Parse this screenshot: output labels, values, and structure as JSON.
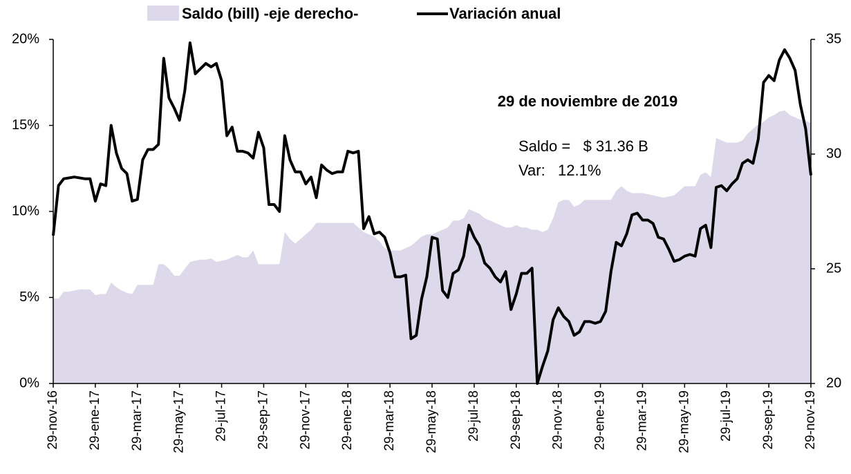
{
  "chart_data": {
    "type": "line",
    "legend": "top",
    "annotations": [
      "29 de noviembre de 2019",
      "Saldo =   $ 31.36 B",
      "Var:   12.1%"
    ],
    "categories": [
      "29-nov-16",
      null,
      null,
      null,
      null,
      null,
      null,
      null,
      "29-ene-17",
      null,
      null,
      null,
      null,
      null,
      null,
      null,
      "29-mar-17",
      null,
      null,
      null,
      null,
      null,
      null,
      null,
      "29-may-17",
      null,
      null,
      null,
      null,
      null,
      null,
      null,
      "29-jul-17",
      null,
      null,
      null,
      null,
      null,
      null,
      null,
      "29-sep-17",
      null,
      null,
      null,
      null,
      null,
      null,
      null,
      "29-nov-17",
      null,
      null,
      null,
      null,
      null,
      null,
      null,
      "29-ene-18",
      null,
      null,
      null,
      null,
      null,
      null,
      null,
      "29-mar-18",
      null,
      null,
      null,
      null,
      null,
      null,
      null,
      "29-may-18",
      null,
      null,
      null,
      null,
      null,
      null,
      null,
      "29-jul-18",
      null,
      null,
      null,
      null,
      null,
      null,
      null,
      "29-sep-18",
      null,
      null,
      null,
      null,
      null,
      null,
      null,
      "29-nov-18",
      null,
      null,
      null,
      null,
      null,
      null,
      null,
      "29-ene-19",
      null,
      null,
      null,
      null,
      null,
      null,
      null,
      "29-mar-19",
      null,
      null,
      null,
      null,
      null,
      null,
      null,
      "29-may-19",
      null,
      null,
      null,
      null,
      null,
      null,
      null,
      "29-jul-19",
      null,
      null,
      null,
      null,
      null,
      null,
      null,
      "29-sep-19",
      null,
      null,
      null,
      null,
      null,
      null,
      null,
      "29-nov-19"
    ],
    "series": [
      {
        "name": "Saldo (bill) -eje derecho-",
        "type": "area",
        "axis": "y2",
        "color": "#ddd8ea",
        "values": [
          23.7,
          23.7,
          24.0,
          24.0,
          24.05,
          24.1,
          24.1,
          24.1,
          23.85,
          23.9,
          23.9,
          24.4,
          24.2,
          24.05,
          23.95,
          23.9,
          24.3,
          24.3,
          24.3,
          24.3,
          25.2,
          25.2,
          25.0,
          24.7,
          24.7,
          25.0,
          25.3,
          25.35,
          25.4,
          25.4,
          25.45,
          25.3,
          25.35,
          25.4,
          25.5,
          25.6,
          25.5,
          25.5,
          25.8,
          25.2,
          25.2,
          25.2,
          25.2,
          25.2,
          26.6,
          26.3,
          26.1,
          26.3,
          26.5,
          26.7,
          27.0,
          27.0,
          27.0,
          27.0,
          27.0,
          27.0,
          27.0,
          27.0,
          26.8,
          26.6,
          26.5,
          26.4,
          26.2,
          25.9,
          25.8,
          25.8,
          25.8,
          25.9,
          26.0,
          26.2,
          26.4,
          26.5,
          26.5,
          26.6,
          26.7,
          26.8,
          27.1,
          27.1,
          27.2,
          27.6,
          27.5,
          27.4,
          27.2,
          27.1,
          27.0,
          26.9,
          26.8,
          26.8,
          26.9,
          26.8,
          26.8,
          26.7,
          26.7,
          26.6,
          26.7,
          27.2,
          27.9,
          28.0,
          28.0,
          27.7,
          27.8,
          28.0,
          28.0,
          28.0,
          28.0,
          28.0,
          28.0,
          28.4,
          28.6,
          28.4,
          28.3,
          28.3,
          28.3,
          28.25,
          28.2,
          28.15,
          28.1,
          28.15,
          28.2,
          28.4,
          28.6,
          28.6,
          28.6,
          29.1,
          29.2,
          29.0,
          30.7,
          30.6,
          30.5,
          30.5,
          30.5,
          30.6,
          30.9,
          31.1,
          31.3,
          31.4,
          31.6,
          31.7,
          31.85,
          31.9,
          31.7,
          31.6,
          31.5,
          31.45,
          31.36
        ]
      },
      {
        "name": "Variación anual",
        "type": "line",
        "color": "#000000",
        "values": [
          8.6,
          11.5,
          11.9,
          11.95,
          12.0,
          11.95,
          11.9,
          11.9,
          10.6,
          11.6,
          11.5,
          15.0,
          13.4,
          12.5,
          12.2,
          10.6,
          10.7,
          13.0,
          13.6,
          13.6,
          13.9,
          18.9,
          16.6,
          16.0,
          15.3,
          17.0,
          19.8,
          18.0,
          18.3,
          18.6,
          18.4,
          18.6,
          17.6,
          14.4,
          14.9,
          13.5,
          13.5,
          13.4,
          13.1,
          14.6,
          13.7,
          10.4,
          10.4,
          10.0,
          14.4,
          13.0,
          12.3,
          12.3,
          11.6,
          12.0,
          10.8,
          12.7,
          12.4,
          12.2,
          12.3,
          12.3,
          13.5,
          13.4,
          13.5,
          9.0,
          9.7,
          8.7,
          8.8,
          8.5,
          7.6,
          6.2,
          6.2,
          6.3,
          2.6,
          2.8,
          4.9,
          6.2,
          8.5,
          8.4,
          5.4,
          5.0,
          6.4,
          6.6,
          7.4,
          9.2,
          8.5,
          8.0,
          7.0,
          6.7,
          6.2,
          5.9,
          6.5,
          4.3,
          5.2,
          6.4,
          6.4,
          6.7,
          0.0,
          1.0,
          1.9,
          3.7,
          4.4,
          3.9,
          3.6,
          2.8,
          3.0,
          3.6,
          3.6,
          3.5,
          3.6,
          4.2,
          6.5,
          8.2,
          8.0,
          8.7,
          9.8,
          9.9,
          9.5,
          9.5,
          9.3,
          8.5,
          8.4,
          7.8,
          7.1,
          7.2,
          7.4,
          7.5,
          7.4,
          9.0,
          9.2,
          7.9,
          11.4,
          11.5,
          11.2,
          11.6,
          11.9,
          12.8,
          13.0,
          12.8,
          14.2,
          17.5,
          17.9,
          17.6,
          18.8,
          19.4,
          18.9,
          18.2,
          16.2,
          14.8,
          12.1
        ]
      }
    ],
    "ylim": [
      0,
      20
    ],
    "yticks": [
      {
        "value": 0,
        "label": "0%"
      },
      {
        "value": 5,
        "label": "5%"
      },
      {
        "value": 10,
        "label": "10%"
      },
      {
        "value": 15,
        "label": "15%"
      },
      {
        "value": 20,
        "label": "20%"
      }
    ],
    "y2lim": [
      20,
      35
    ],
    "y2ticks": [
      20,
      25,
      30,
      35
    ],
    "grid": false
  }
}
